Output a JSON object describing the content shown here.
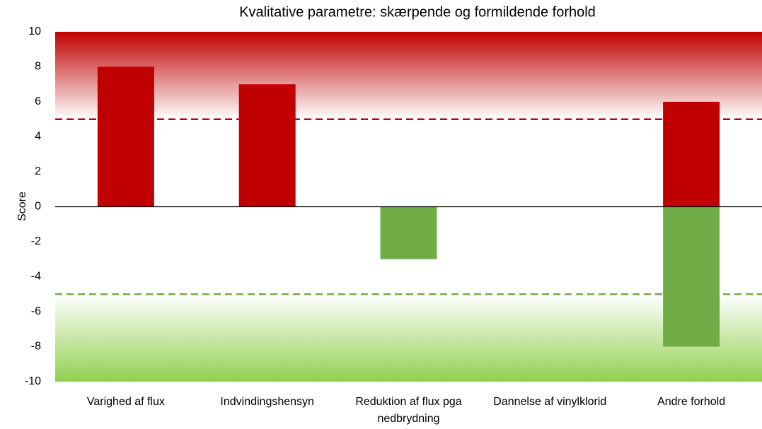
{
  "chart_data": {
    "type": "bar",
    "title": "Kvalitative parametre: skærpende og formildende forhold",
    "y_label": "Score",
    "categories": [
      "Varighed af flux",
      "Indvindingshensyn",
      "Reduktion af flux pga nedbrydning",
      "Dannelse af vinylklorid",
      "Andre forhold"
    ],
    "series": [
      {
        "color": "#c00000",
        "values": [
          8,
          7,
          null,
          null,
          6
        ]
      },
      {
        "color": "#70ad47",
        "values": [
          null,
          null,
          -3,
          null,
          -8
        ]
      }
    ],
    "reference_lines": [
      {
        "value": 5,
        "color": "#c00000",
        "band_color": "#c00000"
      },
      {
        "value": -5,
        "color": "#70ad47",
        "band_color": "#92d050"
      }
    ],
    "ylim": [
      -10,
      10
    ],
    "yticks": [
      -10,
      -8,
      -6,
      -4,
      -2,
      0,
      2,
      4,
      6,
      8,
      10
    ]
  }
}
